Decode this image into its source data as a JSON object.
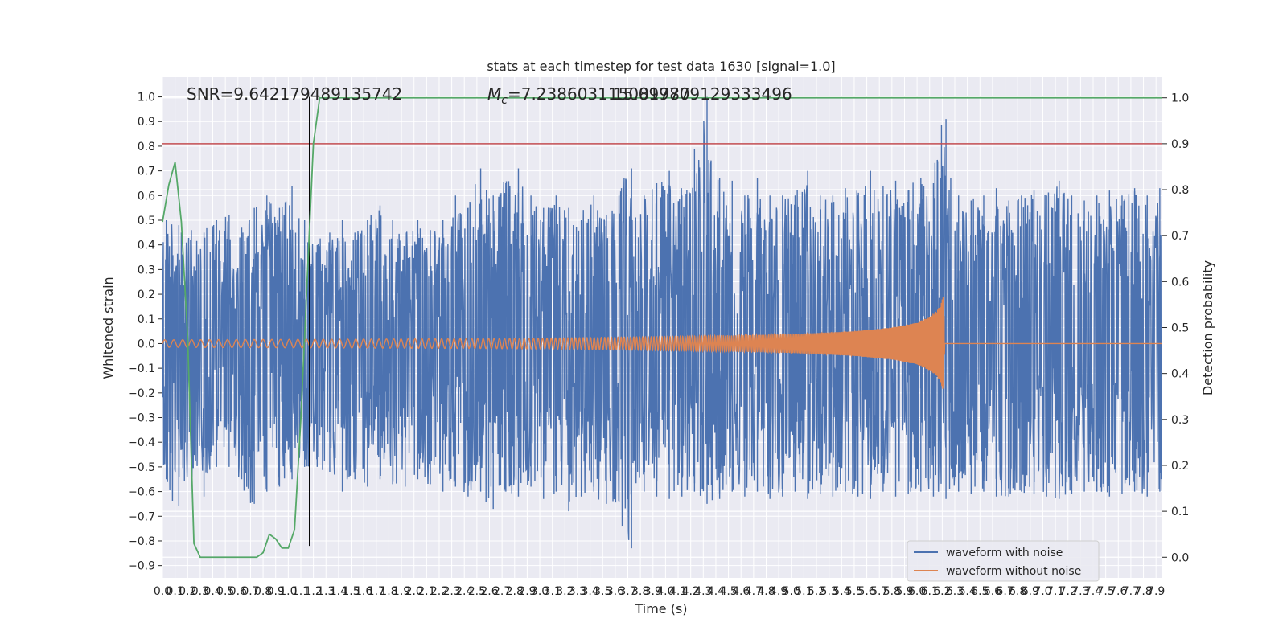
{
  "chart_data": {
    "type": "line",
    "title": "stats at each timestep for test data 1630 [signal=1.0]",
    "xlabel": "Time (s)",
    "ylabel": "Whitened strain",
    "y2label": "Detection probability",
    "xlim": [
      0.0,
      7.95
    ],
    "ylim": [
      -0.95,
      1.08
    ],
    "y2lim": [
      -0.045,
      1.045
    ],
    "x_ticks": [
      "0.0",
      "0.1",
      "0.2",
      "0.3",
      "0.4",
      "0.5",
      "0.6",
      "0.7",
      "0.8",
      "0.9",
      "1.0",
      "1.1",
      "1.2",
      "1.3",
      "1.4",
      "1.5",
      "1.6",
      "1.7",
      "1.8",
      "1.9",
      "2.0",
      "2.1",
      "2.2",
      "2.3",
      "2.4",
      "2.5",
      "2.6",
      "2.7",
      "2.8",
      "2.9",
      "3.0",
      "3.1",
      "3.2",
      "3.3",
      "3.4",
      "3.5",
      "3.6",
      "3.7",
      "3.8",
      "3.9",
      "4.0",
      "4.1",
      "4.2",
      "4.3",
      "4.4",
      "4.5",
      "4.6",
      "4.7",
      "4.8",
      "4.9",
      "5.0",
      "5.1",
      "5.2",
      "5.3",
      "5.4",
      "5.5",
      "5.6",
      "5.7",
      "5.8",
      "5.9",
      "6.0",
      "6.1",
      "6.2",
      "6.3",
      "6.4",
      "6.5",
      "6.6",
      "6.7",
      "6.8",
      "6.9",
      "7.0",
      "7.1",
      "7.2",
      "7.3",
      "7.4",
      "7.5",
      "7.6",
      "7.7",
      "7.8",
      "7.9"
    ],
    "y_ticks": [
      "1.0",
      "0.9",
      "0.8",
      "0.7",
      "0.6",
      "0.5",
      "0.4",
      "0.3",
      "0.2",
      "0.1",
      "0.0",
      "−0.1",
      "−0.2",
      "−0.3",
      "−0.4",
      "−0.5",
      "−0.6",
      "−0.7",
      "−0.8",
      "−0.9"
    ],
    "y2_ticks": [
      "1.0",
      "0.9",
      "0.8",
      "0.7",
      "0.6",
      "0.5",
      "0.4",
      "0.3",
      "0.2",
      "0.1",
      "0.0"
    ],
    "annotations": {
      "snr": "SNR=9.642179489135742",
      "mc_symbol": "M",
      "mc_sub": "c",
      "mc_value": "=7.238603115081787",
      "overlap": "15.099709129333496"
    },
    "series": [
      {
        "name": "waveform with noise",
        "color": "#4c72b0",
        "style": "noise envelope",
        "x": [
          0.0,
          0.1,
          0.2,
          0.3,
          0.4,
          0.5,
          0.6,
          0.7,
          0.8,
          0.9,
          1.0,
          1.1,
          1.2,
          1.3,
          1.4,
          1.5,
          1.6,
          1.7,
          1.8,
          1.9,
          2.0,
          2.1,
          2.2,
          2.3,
          2.4,
          2.5,
          2.6,
          2.7,
          2.8,
          2.9,
          3.0,
          3.1,
          3.2,
          3.3,
          3.4,
          3.5,
          3.6,
          3.7,
          3.8,
          3.9,
          4.0,
          4.1,
          4.2,
          4.3,
          4.4,
          4.5,
          4.6,
          4.7,
          4.8,
          4.9,
          5.0,
          5.1,
          5.2,
          5.3,
          5.4,
          5.5,
          5.6,
          5.7,
          5.8,
          5.9,
          6.0,
          6.1,
          6.2,
          6.3,
          6.4,
          6.5,
          6.6,
          6.7,
          6.8,
          6.9,
          7.0,
          7.1,
          7.2,
          7.3,
          7.4,
          7.5,
          7.6,
          7.7,
          7.8,
          7.9
        ],
        "upper": [
          0.5,
          0.48,
          0.46,
          0.45,
          0.5,
          0.52,
          0.47,
          0.55,
          0.6,
          0.55,
          0.64,
          0.5,
          0.4,
          0.45,
          0.5,
          0.45,
          0.5,
          0.56,
          0.5,
          0.45,
          0.5,
          0.46,
          0.5,
          0.6,
          0.55,
          0.71,
          0.6,
          0.65,
          0.71,
          0.6,
          0.55,
          0.6,
          0.55,
          0.5,
          0.6,
          0.52,
          0.6,
          0.71,
          0.6,
          0.65,
          0.7,
          0.6,
          0.79,
          1.0,
          0.67,
          0.66,
          0.6,
          0.67,
          0.6,
          0.6,
          0.6,
          0.7,
          0.6,
          0.6,
          0.63,
          0.6,
          0.7,
          0.64,
          0.66,
          0.62,
          0.67,
          0.65,
          0.91,
          0.6,
          0.58,
          0.6,
          0.63,
          0.58,
          0.6,
          0.62,
          0.6,
          0.66,
          0.6,
          0.58,
          0.6,
          0.62,
          0.6,
          0.63,
          0.6,
          0.63
        ],
        "lower": [
          -0.55,
          -0.66,
          -0.56,
          -0.62,
          -0.5,
          -0.5,
          -0.55,
          -0.65,
          -0.6,
          -0.58,
          -0.55,
          -0.5,
          -0.5,
          -0.52,
          -0.6,
          -0.55,
          -0.58,
          -0.55,
          -0.57,
          -0.58,
          -0.55,
          -0.57,
          -0.6,
          -0.58,
          -0.62,
          -0.6,
          -0.67,
          -0.6,
          -0.62,
          -0.58,
          -0.63,
          -0.6,
          -0.68,
          -0.62,
          -0.6,
          -0.65,
          -0.64,
          -0.83,
          -0.6,
          -0.62,
          -0.63,
          -0.62,
          -0.6,
          -0.65,
          -0.63,
          -0.6,
          -0.62,
          -0.6,
          -0.63,
          -0.62,
          -0.6,
          -0.63,
          -0.61,
          -0.62,
          -0.6,
          -0.62,
          -0.63,
          -0.6,
          -0.62,
          -0.61,
          -0.6,
          -0.62,
          -0.63,
          -0.6,
          -0.61,
          -0.6,
          -0.62,
          -0.62,
          -0.6,
          -0.61,
          -0.62,
          -0.63,
          -0.61,
          -0.6,
          -0.6,
          -0.62,
          -0.61,
          -0.6,
          -0.62,
          -0.6
        ]
      },
      {
        "name": "waveform without noise",
        "color": "#dd8452",
        "style": "chirp",
        "x": [
          0.0,
          0.5,
          1.0,
          1.5,
          2.0,
          2.5,
          3.0,
          3.5,
          4.0,
          4.5,
          5.0,
          5.5,
          5.8,
          6.0,
          6.1,
          6.15,
          6.18,
          6.2,
          6.21,
          6.22,
          7.95
        ],
        "amplitude": [
          0.015,
          0.016,
          0.017,
          0.018,
          0.019,
          0.02,
          0.022,
          0.025,
          0.028,
          0.032,
          0.038,
          0.05,
          0.065,
          0.085,
          0.11,
          0.13,
          0.15,
          0.18,
          0.19,
          0.0,
          0.0
        ],
        "cycles_per_second_start": 14,
        "cycles_per_second_end": 140
      },
      {
        "name": "detection probability",
        "color": "#55a868",
        "axis": "right",
        "x": [
          0.0,
          0.05,
          0.1,
          0.15,
          0.2,
          0.25,
          0.3,
          0.4,
          0.5,
          0.6,
          0.7,
          0.75,
          0.8,
          0.85,
          0.9,
          0.95,
          1.0,
          1.05,
          1.1,
          1.15,
          1.2,
          1.25,
          1.3,
          1.5,
          2.0,
          3.0,
          4.0,
          5.0,
          6.0,
          7.0,
          7.95
        ],
        "values": [
          0.73,
          0.81,
          0.86,
          0.73,
          0.48,
          0.03,
          0.0,
          0.0,
          0.0,
          0.0,
          0.0,
          0.0,
          0.01,
          0.05,
          0.04,
          0.02,
          0.02,
          0.06,
          0.3,
          0.6,
          0.9,
          1.0,
          1.0,
          1.0,
          1.0,
          1.0,
          1.0,
          1.0,
          1.0,
          1.0,
          1.0
        ]
      },
      {
        "name": "threshold",
        "color": "#c44e52",
        "axis": "right",
        "style": "horizontal line",
        "value": 0.9
      },
      {
        "name": "event time",
        "color": "#000000",
        "style": "vertical line",
        "x": 1.17,
        "ylim": [
          -0.82,
          1.0
        ]
      }
    ],
    "legend": {
      "placement": "lower-right",
      "entries": [
        {
          "label": "waveform with noise",
          "color": "#4c72b0"
        },
        {
          "label": "waveform without noise",
          "color": "#dd8452"
        }
      ]
    },
    "colors": {
      "plot_background": "#eaeaf2",
      "grid": "#ffffff",
      "noise": "#4c72b0",
      "signal": "#dd8452",
      "probability": "#55a868",
      "threshold": "#c44e52",
      "event_line": "#000000"
    },
    "grid": true
  }
}
